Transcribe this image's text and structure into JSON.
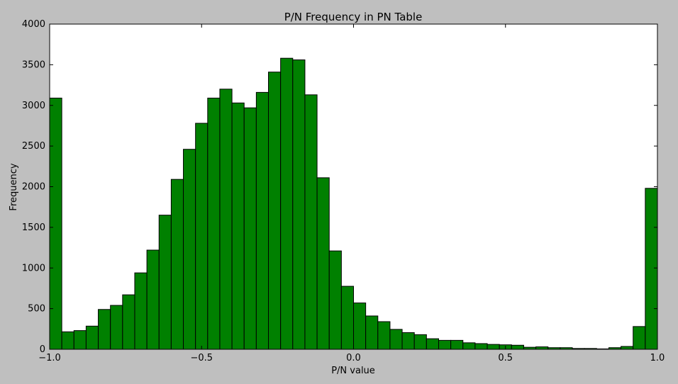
{
  "chart_data": {
    "type": "bar",
    "title": "P/N Frequency in PN Table",
    "xlabel": "P/N value",
    "ylabel": "Frequency",
    "xlim": [
      -1.0,
      1.0
    ],
    "ylim": [
      0,
      4000
    ],
    "x_ticks": [
      -1.0,
      -0.5,
      0.0,
      0.5,
      1.0
    ],
    "x_tick_labels": [
      "−1.0",
      "−0.5",
      "0.0",
      "0.5",
      "1.0"
    ],
    "y_ticks": [
      0,
      500,
      1000,
      1500,
      2000,
      2500,
      3000,
      3500,
      4000
    ],
    "y_tick_labels": [
      "0",
      "500",
      "1000",
      "1500",
      "2000",
      "2500",
      "3000",
      "3500",
      "4000"
    ],
    "bin_edges_start": -1.0,
    "bin_width": 0.04,
    "values": [
      3090,
      215,
      230,
      285,
      490,
      540,
      670,
      940,
      1220,
      1650,
      2090,
      2460,
      2780,
      3090,
      3200,
      3030,
      2970,
      3160,
      3410,
      3580,
      3560,
      3130,
      2110,
      1210,
      775,
      570,
      410,
      340,
      245,
      205,
      180,
      130,
      110,
      110,
      80,
      70,
      60,
      55,
      50,
      25,
      30,
      20,
      20,
      10,
      10,
      5,
      20,
      35,
      280,
      1980
    ],
    "colors": {
      "bar_fill": "#008000",
      "bar_stroke": "#000000",
      "plot_bg": "#ffffff",
      "figure_bg": "#bfbfbf"
    },
    "grid": false
  }
}
